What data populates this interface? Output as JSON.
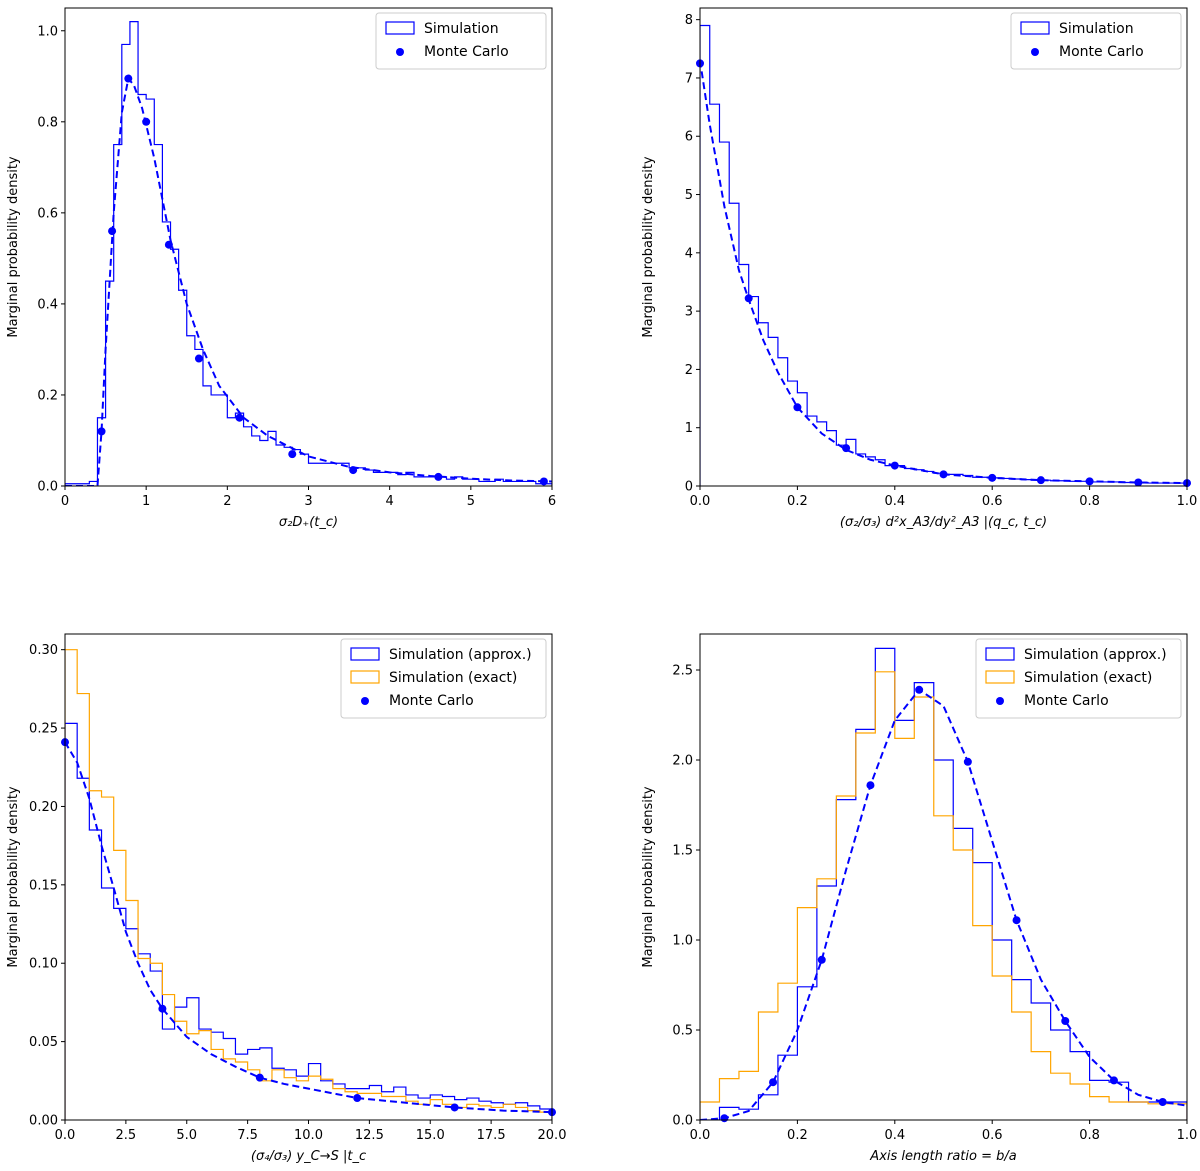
{
  "colors": {
    "approx": "#0000ff",
    "exact": "#ffa500",
    "monte_carlo": "#0000ff",
    "frame": "#000000"
  },
  "chart_data": [
    {
      "id": "p1",
      "type": "histogram",
      "title": "",
      "xlabel": "σ₂D₊(t_c)",
      "ylabel": "Marginal probability density",
      "xlim": [
        0,
        6
      ],
      "ylim": [
        0,
        1.05
      ],
      "xticks": [
        0,
        1,
        2,
        3,
        4,
        5,
        6
      ],
      "xtick_labels": [
        "0",
        "1",
        "2",
        "3",
        "4",
        "5",
        "6"
      ],
      "yticks": [
        0,
        0.2,
        0.4,
        0.6,
        0.8,
        1.0
      ],
      "ytick_labels": [
        "0.0",
        "0.2",
        "0.4",
        "0.6",
        "0.8",
        "1.0"
      ],
      "legend": {
        "position": "upper right",
        "entries": [
          "Simulation",
          "Monte Carlo"
        ]
      },
      "series": [
        {
          "name": "Simulation",
          "kind": "step",
          "color": "#0000ff",
          "bin_start": 0,
          "bin_width": 0.1,
          "values": [
            0.005,
            0.005,
            0.005,
            0.01,
            0.15,
            0.45,
            0.75,
            0.97,
            1.02,
            0.86,
            0.85,
            0.75,
            0.58,
            0.52,
            0.43,
            0.33,
            0.3,
            0.22,
            0.2,
            0.2,
            0.15,
            0.16,
            0.13,
            0.11,
            0.1,
            0.12,
            0.09,
            0.085,
            0.08,
            0.07,
            0.05,
            0.05,
            0.05,
            0.05,
            0.05,
            0.04,
            0.04,
            0.035,
            0.03,
            0.03,
            0.03,
            0.025,
            0.03,
            0.02,
            0.02,
            0.02,
            0.02,
            0.015,
            0.02,
            0.015,
            0.015,
            0.01,
            0.01,
            0.015,
            0.01,
            0.01,
            0.01,
            0.01,
            0.005,
            0.005
          ]
        },
        {
          "name": "Monte Carlo",
          "kind": "points",
          "color": "#0000ff",
          "x": [
            0.45,
            0.58,
            0.78,
            1.0,
            1.28,
            1.65,
            2.15,
            2.8,
            3.55,
            4.6,
            5.9
          ],
          "y": [
            0.12,
            0.56,
            0.895,
            0.8,
            0.53,
            0.28,
            0.15,
            0.07,
            0.035,
            0.02,
            0.01
          ]
        },
        {
          "name": "",
          "kind": "dashed",
          "color": "#0000ff",
          "x": [
            0,
            0.4,
            0.45,
            0.5,
            0.6,
            0.7,
            0.78,
            0.85,
            0.95,
            1.1,
            1.3,
            1.5,
            1.7,
            1.9,
            2.2,
            2.5,
            3.0,
            3.5,
            4.0,
            4.5,
            5.0,
            5.5,
            6.0
          ],
          "y": [
            0,
            0,
            0.12,
            0.3,
            0.6,
            0.82,
            0.895,
            0.88,
            0.83,
            0.72,
            0.54,
            0.4,
            0.3,
            0.22,
            0.15,
            0.11,
            0.065,
            0.042,
            0.03,
            0.022,
            0.016,
            0.012,
            0.01
          ]
        }
      ]
    },
    {
      "id": "p2",
      "type": "histogram",
      "title": "",
      "xlabel": "(σ₂/σ₃) d²x_A3/dy²_A3 |(q_c, t_c)",
      "ylabel": "Marginal probability density",
      "xlim": [
        0,
        1.0
      ],
      "ylim": [
        0,
        8.2
      ],
      "xticks": [
        0,
        0.2,
        0.4,
        0.6,
        0.8,
        1.0
      ],
      "xtick_labels": [
        "0.0",
        "0.2",
        "0.4",
        "0.6",
        "0.8",
        "1.0"
      ],
      "yticks": [
        0,
        1,
        2,
        3,
        4,
        5,
        6,
        7,
        8
      ],
      "ytick_labels": [
        "0",
        "1",
        "2",
        "3",
        "4",
        "5",
        "6",
        "7",
        "8"
      ],
      "legend": {
        "position": "upper right",
        "entries": [
          "Simulation",
          "Monte Carlo"
        ]
      },
      "series": [
        {
          "name": "Simulation",
          "kind": "step",
          "color": "#0000ff",
          "bin_start": 0,
          "bin_width": 0.02,
          "values": [
            7.9,
            6.55,
            5.9,
            4.85,
            3.8,
            3.25,
            2.8,
            2.55,
            2.2,
            1.8,
            1.6,
            1.2,
            1.1,
            0.95,
            0.7,
            0.8,
            0.55,
            0.5,
            0.45,
            0.35,
            0.35,
            0.3,
            0.28,
            0.25,
            0.22,
            0.2,
            0.2,
            0.18,
            0.15,
            0.15,
            0.14,
            0.13,
            0.12,
            0.11,
            0.1,
            0.1,
            0.09,
            0.09,
            0.08,
            0.08,
            0.07,
            0.07,
            0.07,
            0.06,
            0.06,
            0.06,
            0.05,
            0.05,
            0.05,
            0.05
          ]
        },
        {
          "name": "Monte Carlo",
          "kind": "points",
          "color": "#0000ff",
          "x": [
            0.0,
            0.1,
            0.2,
            0.3,
            0.4,
            0.5,
            0.6,
            0.7,
            0.8,
            0.9,
            1.0
          ],
          "y": [
            7.25,
            3.22,
            1.35,
            0.65,
            0.35,
            0.2,
            0.14,
            0.1,
            0.08,
            0.06,
            0.05
          ]
        },
        {
          "name": "",
          "kind": "dashed",
          "color": "#0000ff",
          "x": [
            0,
            0.02,
            0.05,
            0.08,
            0.1,
            0.13,
            0.16,
            0.2,
            0.25,
            0.3,
            0.35,
            0.4,
            0.5,
            0.6,
            0.7,
            0.8,
            0.9,
            1.0
          ],
          "y": [
            7.3,
            6.2,
            4.8,
            3.7,
            3.2,
            2.5,
            1.95,
            1.35,
            0.9,
            0.62,
            0.45,
            0.35,
            0.2,
            0.14,
            0.1,
            0.08,
            0.06,
            0.05
          ]
        }
      ]
    },
    {
      "id": "p3",
      "type": "histogram",
      "title": "",
      "xlabel": "(σ₄/σ₃) y_C→S |t_c",
      "ylabel": "Marginal probability density",
      "xlim": [
        0,
        20
      ],
      "ylim": [
        0,
        0.31
      ],
      "xticks": [
        0,
        2.5,
        5,
        7.5,
        10,
        12.5,
        15,
        17.5,
        20
      ],
      "xtick_labels": [
        "0.0",
        "2.5",
        "5.0",
        "7.5",
        "10.0",
        "12.5",
        "15.0",
        "17.5",
        "20.0"
      ],
      "yticks": [
        0,
        0.05,
        0.1,
        0.15,
        0.2,
        0.25,
        0.3
      ],
      "ytick_labels": [
        "0.00",
        "0.05",
        "0.10",
        "0.15",
        "0.20",
        "0.25",
        "0.30"
      ],
      "legend": {
        "position": "upper right",
        "entries": [
          "Simulation (approx.)",
          "Simulation (exact)",
          "Monte Carlo"
        ]
      },
      "series": [
        {
          "name": "Simulation (approx.)",
          "kind": "step",
          "color": "#0000ff",
          "bin_start": 0,
          "bin_width": 0.5,
          "values": [
            0.253,
            0.218,
            0.185,
            0.148,
            0.135,
            0.122,
            0.106,
            0.095,
            0.058,
            0.072,
            0.078,
            0.058,
            0.056,
            0.052,
            0.042,
            0.045,
            0.046,
            0.033,
            0.032,
            0.028,
            0.036,
            0.025,
            0.023,
            0.02,
            0.02,
            0.022,
            0.018,
            0.021,
            0.016,
            0.014,
            0.016,
            0.015,
            0.013,
            0.014,
            0.012,
            0.011,
            0.01,
            0.011,
            0.009,
            0.007
          ]
        },
        {
          "name": "Simulation (exact)",
          "kind": "step",
          "color": "#ffa500",
          "bin_start": 0,
          "bin_width": 0.5,
          "values": [
            0.3,
            0.272,
            0.21,
            0.206,
            0.172,
            0.14,
            0.103,
            0.1,
            0.08,
            0.063,
            0.055,
            0.057,
            0.045,
            0.039,
            0.037,
            0.032,
            0.025,
            0.032,
            0.027,
            0.025,
            0.028,
            0.026,
            0.02,
            0.018,
            0.017,
            0.017,
            0.015,
            0.015,
            0.012,
            0.01,
            0.013,
            0.01,
            0.008,
            0.01,
            0.009,
            0.008,
            0.01,
            0.008,
            0.006,
            0.005
          ]
        },
        {
          "name": "Monte Carlo",
          "kind": "points",
          "color": "#0000ff",
          "x": [
            0,
            4,
            8,
            12,
            16,
            20
          ],
          "y": [
            0.241,
            0.071,
            0.027,
            0.014,
            0.008,
            0.005
          ]
        },
        {
          "name": "",
          "kind": "dashed",
          "color": "#0000ff",
          "x": [
            0,
            0.5,
            1,
            1.5,
            2,
            2.5,
            3,
            3.5,
            4,
            5,
            6,
            7,
            8,
            9,
            10,
            12,
            14,
            16,
            18,
            20
          ],
          "y": [
            0.241,
            0.228,
            0.205,
            0.175,
            0.148,
            0.12,
            0.1,
            0.083,
            0.071,
            0.053,
            0.042,
            0.034,
            0.027,
            0.023,
            0.02,
            0.014,
            0.011,
            0.008,
            0.006,
            0.005
          ]
        }
      ]
    },
    {
      "id": "p4",
      "type": "histogram",
      "title": "",
      "xlabel": "Axis length ratio = b/a",
      "ylabel": "Marginal probability density",
      "xlim": [
        0,
        1.0
      ],
      "ylim": [
        0,
        2.7
      ],
      "xticks": [
        0,
        0.2,
        0.4,
        0.6,
        0.8,
        1.0
      ],
      "xtick_labels": [
        "0.0",
        "0.2",
        "0.4",
        "0.6",
        "0.8",
        "1.0"
      ],
      "yticks": [
        0,
        0.5,
        1.0,
        1.5,
        2.0,
        2.5
      ],
      "ytick_labels": [
        "0.0",
        "0.5",
        "1.0",
        "1.5",
        "2.0",
        "2.5"
      ],
      "legend": {
        "position": "upper right",
        "entries": [
          "Simulation (approx.)",
          "Simulation (exact)",
          "Monte Carlo"
        ]
      },
      "series": [
        {
          "name": "Simulation (approx.)",
          "kind": "step",
          "color": "#0000ff",
          "bin_start": 0,
          "bin_width": 0.04,
          "values": [
            0.0,
            0.07,
            0.06,
            0.14,
            0.36,
            0.74,
            1.3,
            1.78,
            2.17,
            2.62,
            2.22,
            2.43,
            2.0,
            1.62,
            1.43,
            1.0,
            0.78,
            0.65,
            0.5,
            0.38,
            0.22,
            0.21,
            0.1,
            0.1,
            0.1
          ]
        },
        {
          "name": "Simulation (exact)",
          "kind": "step",
          "color": "#ffa500",
          "bin_start": 0,
          "bin_width": 0.04,
          "values": [
            0.1,
            0.23,
            0.27,
            0.6,
            0.76,
            1.18,
            1.34,
            1.8,
            2.15,
            2.49,
            2.12,
            2.35,
            1.69,
            1.5,
            1.08,
            0.8,
            0.6,
            0.38,
            0.26,
            0.2,
            0.13,
            0.1,
            0.1,
            0.09,
            0.09
          ]
        },
        {
          "name": "Monte Carlo",
          "kind": "points",
          "color": "#0000ff",
          "x": [
            0.05,
            0.15,
            0.25,
            0.35,
            0.45,
            0.55,
            0.65,
            0.75,
            0.85,
            0.95
          ],
          "y": [
            0.01,
            0.21,
            0.89,
            1.86,
            2.39,
            1.99,
            1.11,
            0.55,
            0.22,
            0.1
          ]
        },
        {
          "name": "",
          "kind": "dashed",
          "color": "#0000ff",
          "x": [
            0.0,
            0.05,
            0.1,
            0.15,
            0.2,
            0.25,
            0.3,
            0.35,
            0.4,
            0.45,
            0.5,
            0.55,
            0.6,
            0.65,
            0.7,
            0.75,
            0.8,
            0.85,
            0.9,
            0.95,
            1.0
          ],
          "y": [
            0.0,
            0.01,
            0.05,
            0.21,
            0.5,
            0.89,
            1.39,
            1.86,
            2.22,
            2.39,
            2.3,
            1.99,
            1.55,
            1.11,
            0.78,
            0.55,
            0.35,
            0.22,
            0.14,
            0.1,
            0.08
          ]
        }
      ]
    }
  ]
}
